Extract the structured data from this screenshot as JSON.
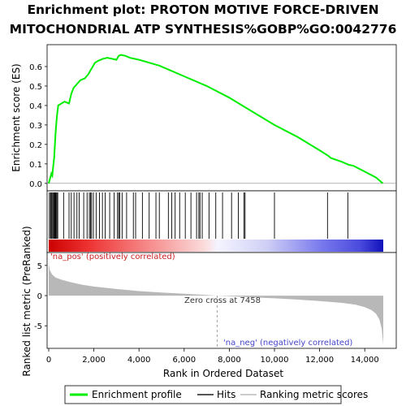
{
  "title_line1": "Enrichment plot: PROTON MOTIVE FORCE-DRIVEN",
  "title_line2": "MITOCHONDRIAL ATP SYNTHESIS%GOBP%GO:0042776",
  "colors": {
    "es_line": "#00ee00",
    "hits": "#000000",
    "metric_fill": "#b8b8b8",
    "pos_text": "#cc2222",
    "neg_text": "#4444cc"
  },
  "chart_data": [
    {
      "type": "line",
      "name": "enrichment-profile",
      "ylabel": "Enrichment score (ES)",
      "xlim": [
        0,
        15300
      ],
      "ylim": [
        -0.03,
        0.7
      ],
      "yticks": [
        "0.0",
        "0.1",
        "0.2",
        "0.3",
        "0.4",
        "0.5",
        "0.6"
      ],
      "ytick_values": [
        0.0,
        0.1,
        0.2,
        0.3,
        0.4,
        0.5,
        0.6
      ],
      "series": [
        {
          "name": "Enrichment profile",
          "x": [
            0,
            120,
            160,
            200,
            240,
            270,
            300,
            330,
            360,
            390,
            420,
            700,
            900,
            1000,
            1100,
            1250,
            1400,
            1600,
            1750,
            1850,
            1950,
            2050,
            2200,
            2400,
            2600,
            2800,
            3000,
            3100,
            3200,
            3400,
            3600,
            3800,
            4000,
            4300,
            4600,
            4900,
            5200,
            6000,
            7000,
            8000,
            9000,
            10000,
            11000,
            12000,
            12400,
            12500,
            13000,
            13300,
            13500,
            14000,
            14500,
            14800
          ],
          "y": [
            0.0,
            0.05,
            0.04,
            0.09,
            0.13,
            0.19,
            0.25,
            0.3,
            0.34,
            0.37,
            0.4,
            0.42,
            0.41,
            0.46,
            0.49,
            0.51,
            0.53,
            0.54,
            0.56,
            0.58,
            0.6,
            0.62,
            0.63,
            0.64,
            0.645,
            0.64,
            0.635,
            0.655,
            0.66,
            0.655,
            0.645,
            0.64,
            0.635,
            0.625,
            0.615,
            0.605,
            0.59,
            0.55,
            0.5,
            0.44,
            0.37,
            0.3,
            0.24,
            0.17,
            0.14,
            0.13,
            0.11,
            0.095,
            0.09,
            0.06,
            0.03,
            0.0
          ]
        }
      ]
    },
    {
      "type": "hits",
      "name": "hits",
      "xlim": [
        0,
        15300
      ],
      "hit_ranks": [
        30,
        80,
        110,
        150,
        190,
        230,
        260,
        290,
        320,
        360,
        400,
        660,
        900,
        1000,
        1120,
        1250,
        1350,
        1550,
        1700,
        1800,
        1850,
        1900,
        1980,
        2100,
        2250,
        2380,
        2500,
        2700,
        2900,
        3050,
        3100,
        3150,
        3250,
        3450,
        3750,
        3850,
        4150,
        4450,
        4750,
        4900,
        5300,
        5450,
        5600,
        5800,
        6050,
        6300,
        6550,
        6650,
        6700,
        6800,
        7100,
        7400,
        7700,
        8100,
        8400,
        8650,
        8700,
        10000,
        12350,
        13250
      ]
    },
    {
      "type": "area",
      "name": "ranked-list-metric",
      "xlabel": "Rank in Ordered Dataset",
      "ylabel": "Ranked list metric (PreRanked)",
      "xlim": [
        0,
        15300
      ],
      "ylim": [
        -8.6,
        7
      ],
      "xticks": [
        "0",
        "2,000",
        "4,000",
        "6,000",
        "8,000",
        "10,000",
        "12,000",
        "14,000"
      ],
      "xtick_values": [
        0,
        2000,
        4000,
        6000,
        8000,
        10000,
        12000,
        14000
      ],
      "yticks": [
        "5",
        "0",
        "-5"
      ],
      "ytick_values": [
        5,
        0,
        -5
      ],
      "x": [
        0,
        10,
        50,
        150,
        300,
        600,
        1000,
        1500,
        2000,
        3000,
        4000,
        5000,
        6000,
        7000,
        7458,
        8000,
        9000,
        10000,
        11000,
        12000,
        13000,
        13600,
        14000,
        14300,
        14500,
        14650,
        14750,
        14820
      ],
      "values": [
        6.2,
        5.0,
        4.2,
        3.5,
        3.0,
        2.6,
        2.2,
        1.8,
        1.5,
        1.1,
        0.75,
        0.5,
        0.3,
        0.1,
        0.0,
        -0.1,
        -0.3,
        -0.45,
        -0.65,
        -0.9,
        -1.2,
        -1.5,
        -1.9,
        -2.4,
        -3.0,
        -4.0,
        -5.5,
        -8.1
      ],
      "zero_cross_rank": 7458
    }
  ],
  "annotations": {
    "pos_label": "'na_pos' (positively correlated)",
    "neg_label": "'na_neg' (negatively correlated)",
    "zero_cross": "Zero cross at 7458"
  },
  "legend": {
    "items": [
      "Enrichment profile",
      "Hits",
      "Ranking metric scores"
    ]
  }
}
